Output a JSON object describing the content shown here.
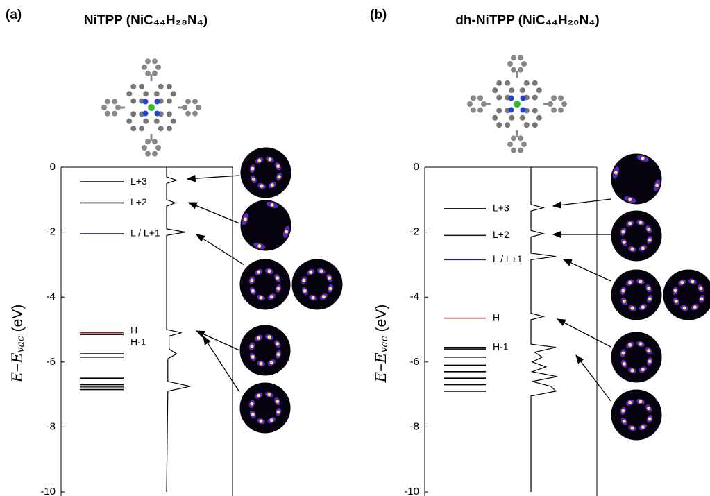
{
  "chart_data": [
    {
      "type": "levels",
      "panel_label": "(a)",
      "title": "NiTPP (NiC₄₄H₂₈N₄)",
      "ylabel": [
        "E",
        "−",
        "E",
        "vac",
        "(eV)"
      ],
      "ylim": [
        -10,
        0
      ],
      "yticks": [
        0,
        -2,
        -4,
        -6,
        -8,
        -10
      ],
      "levels": [
        {
          "energy": -0.45,
          "color": "#000000",
          "label": "L+3"
        },
        {
          "energy": -1.1,
          "color": "#222222",
          "label": "L+2"
        },
        {
          "energy": -2.05,
          "color": "#2a2a7a",
          "label": "L / L+1"
        },
        {
          "energy": -5.1,
          "color": "#8b1a1a",
          "label": "H"
        },
        {
          "energy": -5.15,
          "color": "#000000",
          "label": "H-1"
        },
        {
          "energy": -5.75,
          "color": "#000000"
        },
        {
          "energy": -5.85,
          "color": "#000000"
        },
        {
          "energy": -6.5,
          "color": "#000000"
        },
        {
          "energy": -6.7,
          "color": "#000000"
        },
        {
          "energy": -6.75,
          "color": "#000000"
        },
        {
          "energy": -6.8,
          "color": "#000000"
        },
        {
          "energy": -6.85,
          "color": "#000000"
        }
      ],
      "dos": {
        "energy": [
          0,
          -0.3,
          -0.4,
          -0.5,
          -1.0,
          -1.1,
          -1.2,
          -1.9,
          -2.0,
          -2.1,
          -5.0,
          -5.1,
          -5.2,
          -5.6,
          -5.75,
          -5.9,
          -6.6,
          -6.75,
          -6.9,
          -10
        ],
        "intensity": [
          0,
          0,
          0.4,
          0,
          0,
          0.35,
          0,
          0,
          0.75,
          0,
          0,
          0.6,
          0.1,
          0.1,
          0.4,
          0.05,
          0.05,
          0.95,
          0.05,
          0
        ]
      }
    },
    {
      "type": "levels",
      "panel_label": "(b)",
      "title": "dh-NiTPP (NiC₄₄H₂₀N₄)",
      "ylabel": [
        "E",
        "−",
        "E",
        "vac",
        "(eV)"
      ],
      "ylim": [
        -10,
        0
      ],
      "yticks": [
        0,
        -2,
        -4,
        -6,
        -8,
        -10
      ],
      "levels": [
        {
          "energy": -1.28,
          "color": "#000000",
          "label": "L+3"
        },
        {
          "energy": -2.1,
          "color": "#222222",
          "label": "L+2"
        },
        {
          "energy": -2.85,
          "color": "#2a2a7a",
          "label": "L / L+1"
        },
        {
          "energy": -4.65,
          "color": "#8b1a1a",
          "label": "H"
        },
        {
          "energy": -5.55,
          "color": "#000000",
          "label": "H-1"
        },
        {
          "energy": -5.6,
          "color": "#000000"
        },
        {
          "energy": -5.85,
          "color": "#000000"
        },
        {
          "energy": -6.1,
          "color": "#000000"
        },
        {
          "energy": -6.3,
          "color": "#000000"
        },
        {
          "energy": -6.5,
          "color": "#000000"
        },
        {
          "energy": -6.7,
          "color": "#000000"
        },
        {
          "energy": -6.9,
          "color": "#000000"
        }
      ],
      "dos": {
        "energy": [
          0,
          -1.15,
          -1.25,
          -1.35,
          -1.95,
          -2.05,
          -2.15,
          -2.65,
          -2.75,
          -2.85,
          -4.5,
          -4.6,
          -4.7,
          -5.45,
          -5.55,
          -5.7,
          -5.85,
          -6.0,
          -6.15,
          -6.3,
          -6.45,
          -6.6,
          -6.75,
          -6.9,
          -7.05,
          -10
        ],
        "intensity": [
          0,
          0,
          0.5,
          0,
          0,
          0.5,
          0,
          0,
          1.0,
          0,
          0,
          0.5,
          0,
          0,
          1.0,
          0.15,
          0.45,
          0.05,
          0.6,
          0.05,
          1.05,
          0.05,
          0.8,
          1.0,
          0,
          0
        ]
      }
    }
  ]
}
